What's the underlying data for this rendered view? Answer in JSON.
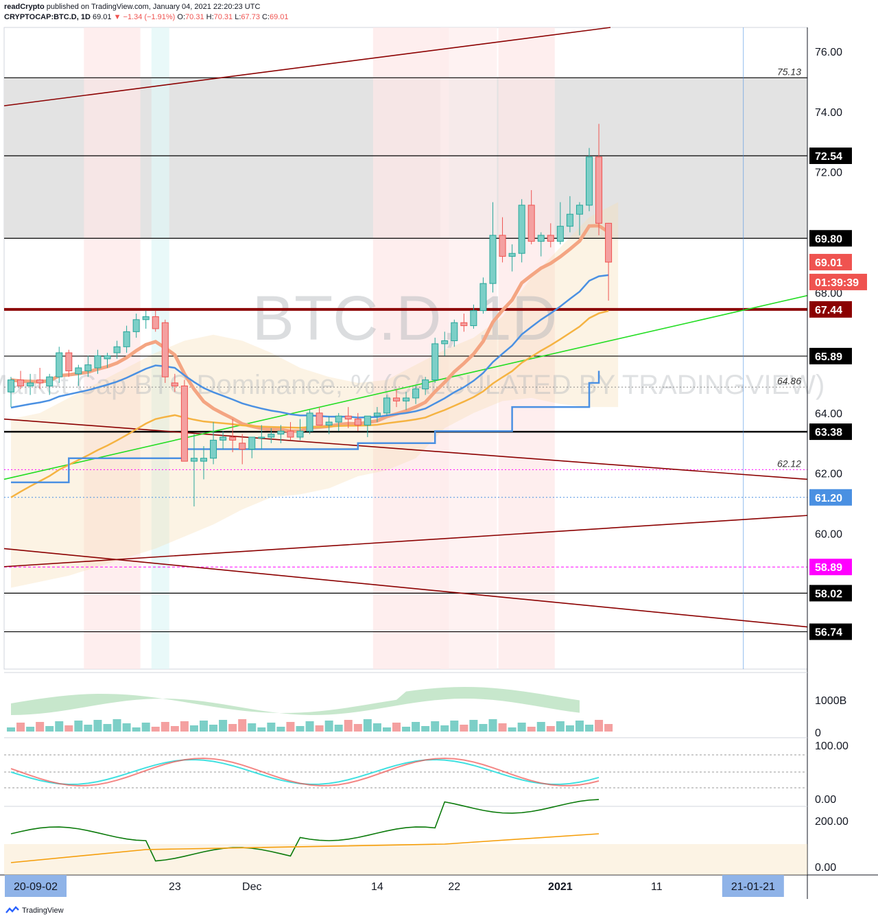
{
  "header": {
    "publisher": "readCrypto",
    "published_text": "published on TradingView.com, January 04, 2021 22:20:23 UTC",
    "symbol": "CRYPTOCAP:BTC.D, 1D",
    "last": "69.01",
    "change": "−1.34 (−1.91%)",
    "open_label": "O:",
    "open": "70.31",
    "high_label": "H:",
    "high": "70.31",
    "low_label": "L:",
    "low": "67.73",
    "close_label": "C:",
    "close": "69.01"
  },
  "watermark": {
    "big": "BTC.D, 1D",
    "small": "Market Cap BTC Dominance, % (CALCULATED BY TRADINGVIEW)"
  },
  "footer": {
    "brand": "TradingView"
  },
  "colors": {
    "up": "#26a69a",
    "down": "#ef5350",
    "level": "#000000",
    "trend": "#8b0000",
    "green_trend": "#22dd22",
    "blue_line": "#4a90e2",
    "orange_ma": "#f5b342"
  },
  "chart_data": [
    {
      "type": "candlestick",
      "name": "main",
      "ylim": [
        55.5,
        76.8
      ],
      "y_ticks": [
        "76.00",
        "74.00",
        "72.00",
        "68.00",
        "64.00",
        "62.00",
        "60.00"
      ],
      "x_labels": [
        {
          "label": "20-09-02",
          "idx": 0,
          "highlight": true
        },
        {
          "label": "23",
          "idx": 17
        },
        {
          "label": "Dec",
          "idx": 25
        },
        {
          "label": "14",
          "idx": 38
        },
        {
          "label": "22",
          "idx": 46
        },
        {
          "label": "2021",
          "idx": 57
        },
        {
          "label": "11",
          "idx": 67
        },
        {
          "label": "21-01-21",
          "idx": 77,
          "highlight": true
        }
      ],
      "price_labels": [
        {
          "value": "72.54",
          "y": 72.54,
          "bg": "#000000",
          "fg": "#ffffff"
        },
        {
          "value": "69.80",
          "y": 69.8,
          "bg": "#000000",
          "fg": "#ffffff"
        },
        {
          "value": "69.01",
          "y": 69.01,
          "bg": "#ef5350",
          "fg": "#ffffff"
        },
        {
          "value": "01:39:39",
          "y": 68.35,
          "bg": "#ef5350",
          "fg": "#ffffff"
        },
        {
          "value": "67.44",
          "y": 67.44,
          "bg": "#8b0000",
          "fg": "#ffffff"
        },
        {
          "value": "65.89",
          "y": 65.89,
          "bg": "#000000",
          "fg": "#ffffff"
        },
        {
          "value": "63.38",
          "y": 63.38,
          "bg": "#000000",
          "fg": "#ffffff"
        },
        {
          "value": "61.20",
          "y": 61.2,
          "bg": "#4a90e2",
          "fg": "#ffffff"
        },
        {
          "value": "58.89",
          "y": 58.89,
          "bg": "#ff00ff",
          "fg": "#ffffff"
        },
        {
          "value": "58.02",
          "y": 58.02,
          "bg": "#000000",
          "fg": "#ffffff"
        },
        {
          "value": "56.74",
          "y": 56.74,
          "bg": "#000000",
          "fg": "#ffffff"
        }
      ],
      "annotations": [
        {
          "text": "75.13",
          "y": 75.13
        },
        {
          "text": "64.86",
          "y": 64.86
        },
        {
          "text": "62.12",
          "y": 62.12
        }
      ],
      "h_levels": [
        75.13,
        72.54,
        69.8,
        65.89,
        63.38,
        58.02,
        56.74
      ],
      "candles": [
        [
          64.7,
          65.2,
          64.2,
          65.1
        ],
        [
          65.1,
          65.4,
          64.8,
          64.9
        ],
        [
          64.9,
          65.3,
          64.6,
          65.0
        ],
        [
          65.1,
          65.5,
          64.8,
          65.0
        ],
        [
          64.9,
          65.3,
          64.6,
          65.2
        ],
        [
          65.2,
          66.2,
          65.0,
          66.0
        ],
        [
          66.0,
          66.1,
          65.2,
          65.4
        ],
        [
          65.3,
          65.6,
          64.9,
          65.5
        ],
        [
          65.4,
          65.9,
          65.2,
          65.6
        ],
        [
          65.5,
          66.1,
          65.3,
          65.9
        ],
        [
          65.8,
          66.0,
          65.5,
          65.9
        ],
        [
          66.0,
          66.4,
          65.8,
          66.2
        ],
        [
          66.2,
          66.9,
          66.0,
          66.7
        ],
        [
          66.7,
          67.3,
          66.5,
          67.1
        ],
        [
          67.1,
          67.4,
          66.8,
          67.2
        ],
        [
          67.2,
          67.4,
          66.7,
          66.8
        ],
        [
          67.0,
          67.1,
          65.0,
          65.2
        ],
        [
          65.0,
          65.3,
          64.7,
          64.9
        ],
        [
          64.9,
          65.1,
          62.4,
          62.4
        ],
        [
          62.4,
          63.3,
          60.9,
          62.5
        ],
        [
          62.4,
          62.9,
          61.8,
          62.5
        ],
        [
          62.5,
          63.7,
          62.3,
          63.1
        ],
        [
          63.1,
          63.4,
          62.8,
          63.2
        ],
        [
          63.2,
          63.8,
          62.7,
          63.1
        ],
        [
          63.0,
          63.3,
          62.3,
          62.8
        ],
        [
          62.8,
          63.2,
          62.5,
          63.2
        ],
        [
          63.2,
          63.6,
          62.8,
          63.2
        ],
        [
          63.2,
          63.5,
          63.0,
          63.3
        ],
        [
          63.3,
          63.6,
          63.0,
          63.4
        ],
        [
          63.4,
          63.7,
          63.1,
          63.2
        ],
        [
          63.2,
          63.8,
          63.1,
          63.4
        ],
        [
          63.4,
          64.1,
          63.3,
          64.0
        ],
        [
          64.0,
          64.2,
          63.6,
          63.6
        ],
        [
          63.6,
          63.9,
          63.3,
          63.7
        ],
        [
          63.7,
          64.0,
          63.4,
          63.9
        ],
        [
          63.9,
          64.2,
          63.5,
          63.8
        ],
        [
          63.8,
          64.0,
          63.4,
          63.6
        ],
        [
          63.6,
          63.9,
          63.2,
          63.9
        ],
        [
          63.9,
          64.2,
          63.7,
          64.0
        ],
        [
          64.0,
          64.6,
          63.9,
          64.5
        ],
        [
          64.5,
          64.8,
          64.2,
          64.4
        ],
        [
          64.4,
          64.7,
          64.1,
          64.5
        ],
        [
          64.5,
          64.9,
          64.3,
          64.8
        ],
        [
          64.8,
          65.2,
          64.6,
          65.1
        ],
        [
          65.1,
          66.5,
          65.0,
          66.3
        ],
        [
          66.3,
          66.7,
          65.9,
          66.4
        ],
        [
          66.4,
          67.1,
          66.2,
          67.0
        ],
        [
          67.0,
          67.3,
          66.7,
          66.9
        ],
        [
          66.9,
          67.6,
          66.8,
          67.4
        ],
        [
          67.4,
          68.5,
          67.3,
          68.3
        ],
        [
          68.3,
          71.0,
          68.0,
          69.9
        ],
        [
          69.9,
          70.5,
          69.0,
          69.2
        ],
        [
          69.2,
          69.6,
          68.7,
          69.3
        ],
        [
          69.3,
          71.1,
          69.0,
          70.9
        ],
        [
          70.9,
          71.4,
          69.6,
          69.7
        ],
        [
          69.7,
          70.0,
          69.2,
          69.9
        ],
        [
          69.9,
          70.3,
          69.5,
          69.7
        ],
        [
          69.7,
          71.0,
          69.6,
          70.2
        ],
        [
          70.2,
          71.2,
          70.0,
          70.6
        ],
        [
          70.6,
          71.0,
          69.9,
          70.9
        ],
        [
          70.9,
          72.8,
          70.7,
          72.5
        ],
        [
          72.5,
          73.6,
          69.9,
          70.3
        ],
        [
          70.3,
          70.31,
          67.73,
          69.01
        ]
      ],
      "indicators": [
        "EMA ribbon",
        "Ichimoku cloud",
        "Bollinger band",
        "Trend lines"
      ]
    },
    {
      "type": "bar",
      "name": "volume",
      "y_ticks": [
        "1000B",
        "0"
      ]
    },
    {
      "type": "line",
      "name": "stoch-rsi",
      "y_ticks": [
        "100.00",
        "0.00"
      ]
    },
    {
      "type": "line",
      "name": "momentum",
      "y_ticks": [
        "200.00",
        "0.00"
      ]
    }
  ]
}
